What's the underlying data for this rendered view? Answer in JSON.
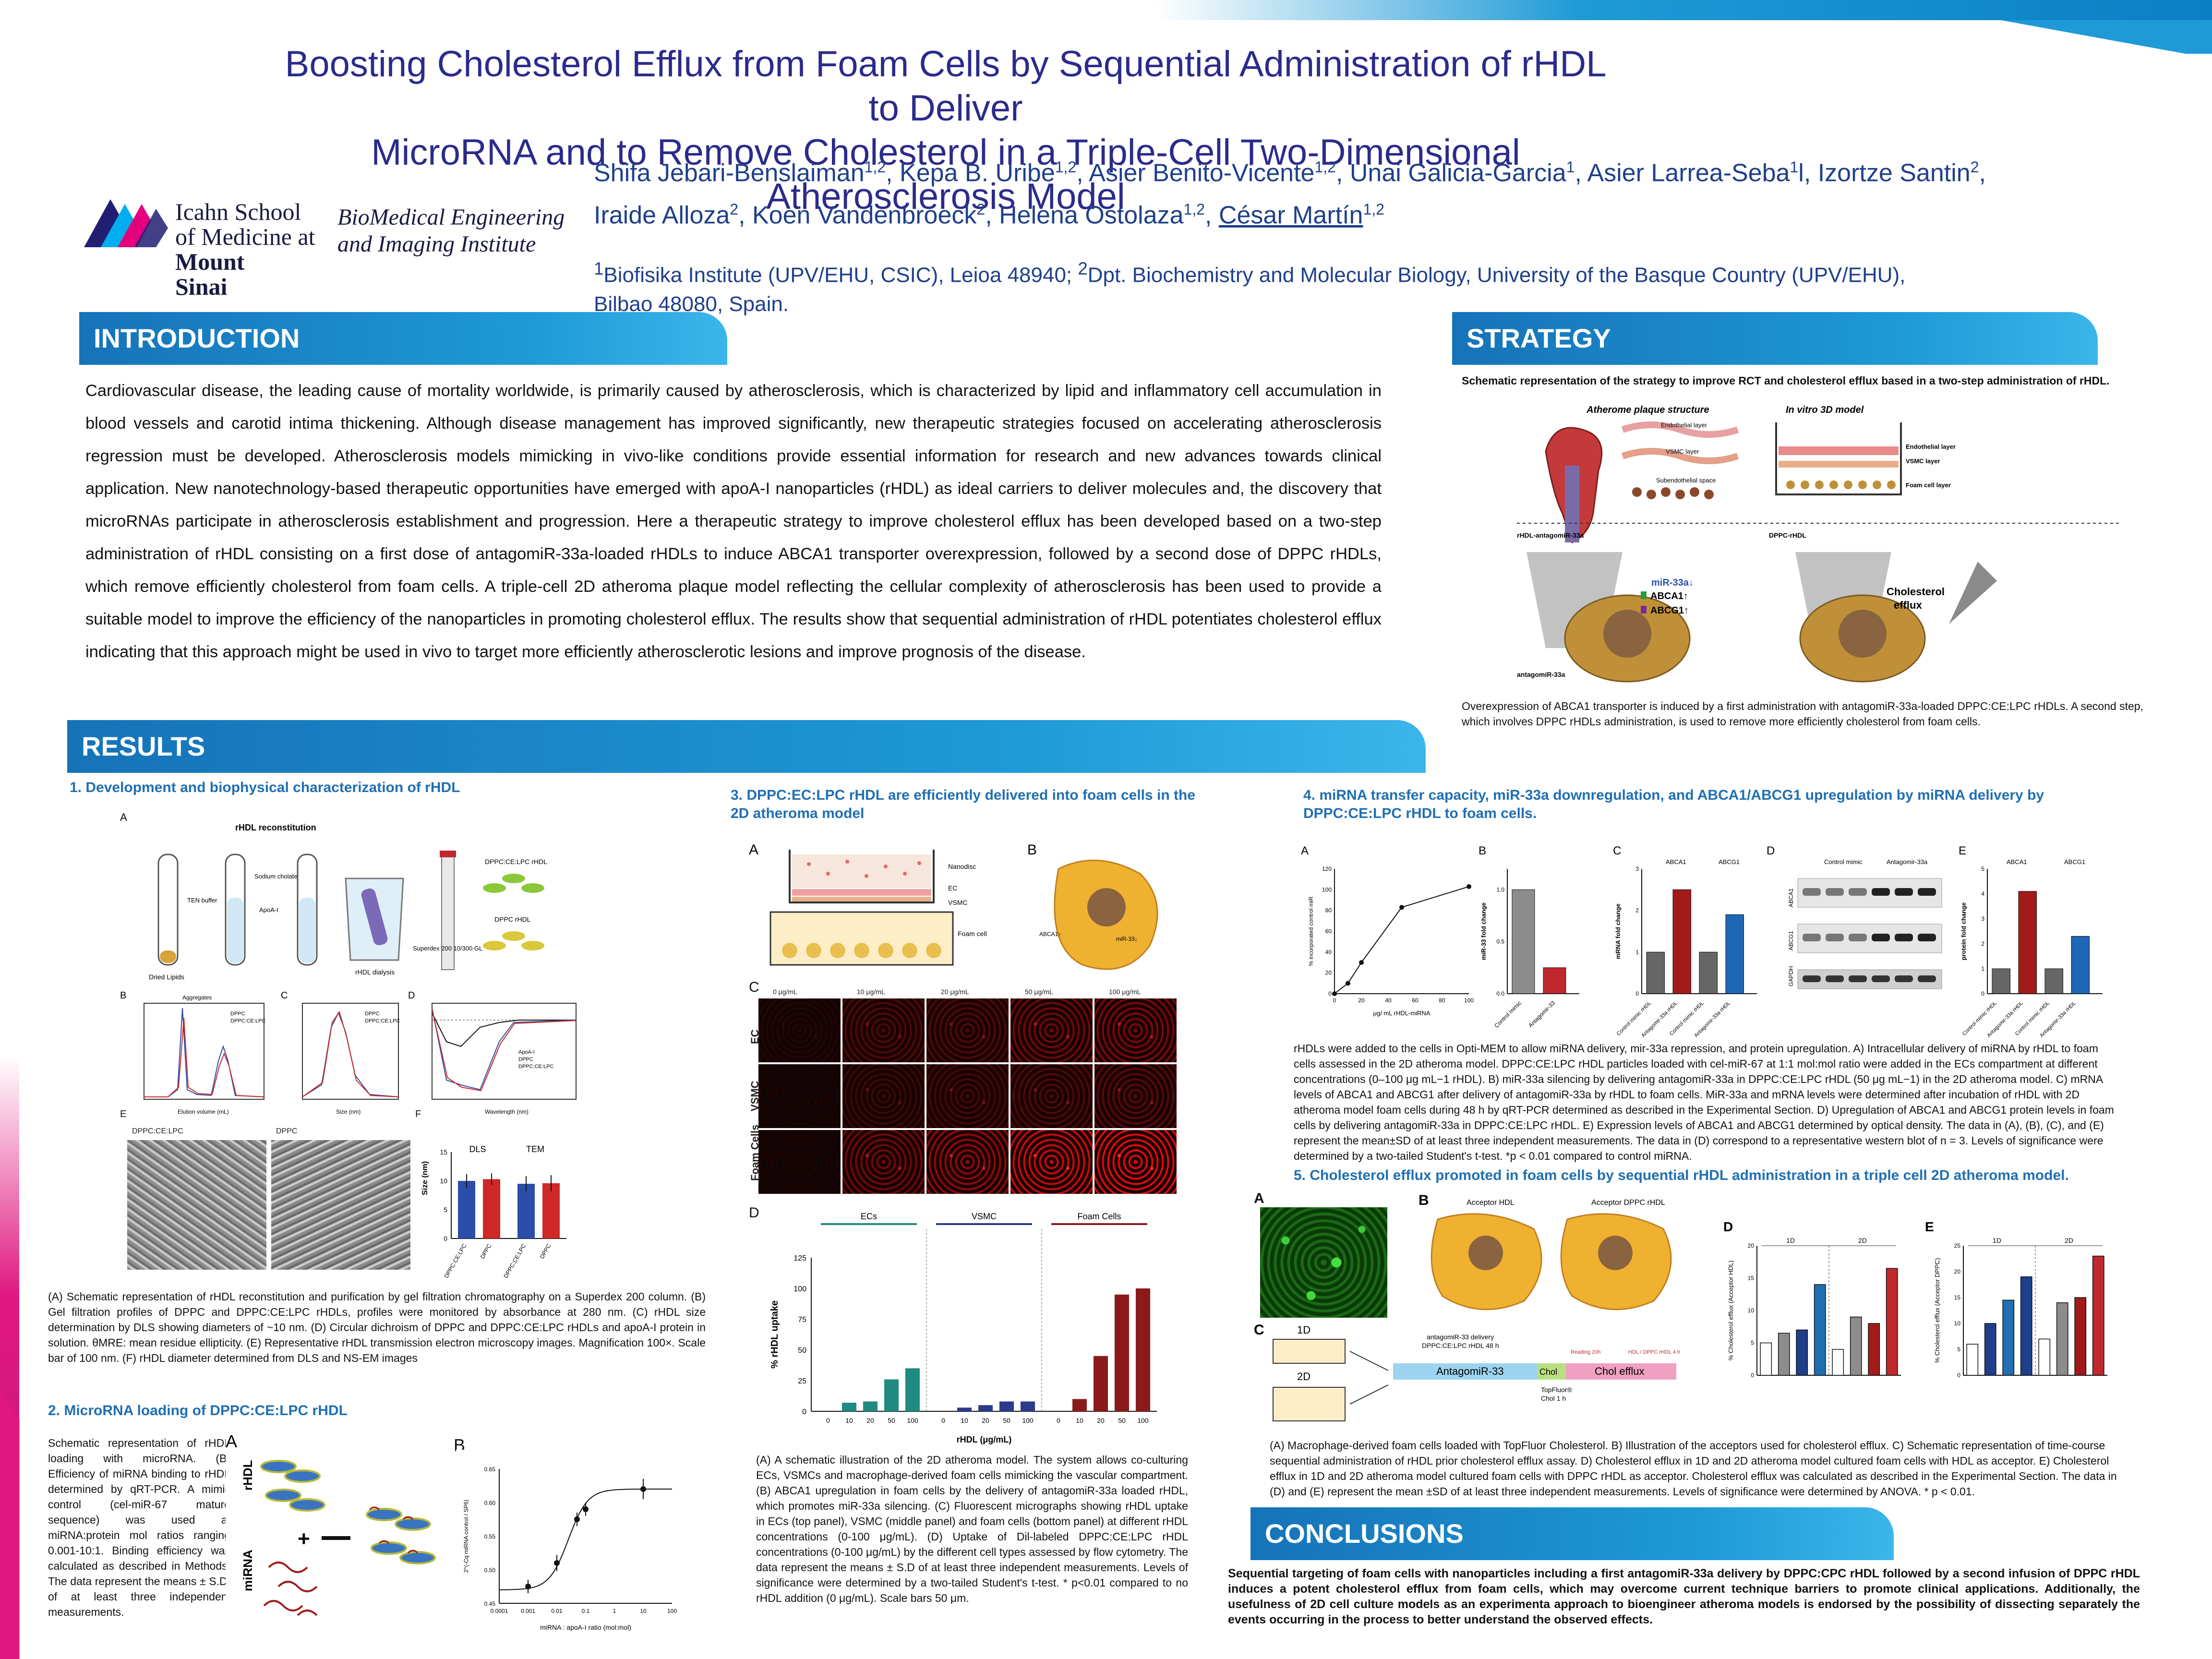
{
  "header": {
    "title_line1": "Boosting Cholesterol Efflux from Foam Cells by Sequential Administration of rHDL to Deliver",
    "title_line2": "MicroRNA and to Remove Cholesterol in a Triple-Cell Two-Dimensional Atherosclerosis Model",
    "authors": [
      {
        "name": "Shifa Jebari-Benslaiman",
        "sup": "1,2",
        "sep": ", "
      },
      {
        "name": "Kepa B. Uribe",
        "sup": "1,2",
        "sep": ", "
      },
      {
        "name": "Asier Benito-Vicente",
        "sup": "1,2",
        "sep": ", "
      },
      {
        "name": "Unai Galicia-Garcia",
        "sup": "1",
        "sep": ", "
      },
      {
        "name": "Asier Larrea-Seba",
        "sup": "1",
        "sep": "l, "
      },
      {
        "name": "Izortze Santin",
        "sup": "2",
        "sep": ", "
      },
      {
        "name": "Iraide Alloza",
        "sup": "2",
        "sep": ", "
      },
      {
        "name": "Koen Vandenbroeck",
        "sup": "2",
        "sep": ", "
      },
      {
        "name": "Helena Ostolaza",
        "sup": "1,2",
        "sep": ", "
      },
      {
        "name": "César Martín",
        "sup": "1,2",
        "sep": ""
      }
    ],
    "affil_sup1": "1",
    "affil_text1": "Biofisika Institute (UPV/EHU, CSIC), Leioa 48940; ",
    "affil_sup2": "2",
    "affil_text2": "Dpt. Biochemistry and Molecular Biology, University of the Basque Country (UPV/EHU), Bilbao 48080, Spain."
  },
  "logo": {
    "line1": "Icahn School",
    "line2": "of Medicine at",
    "line3": "Mount",
    "line4": "Sinai",
    "bmei1": "BioMedical Engineering",
    "bmei2": "and Imaging Institute"
  },
  "sections": {
    "introduction": "INTRODUCTION",
    "strategy": "STRATEGY",
    "results": "RESULTS",
    "conclusions": "CONCLUSIONS"
  },
  "introduction_text": "Cardiovascular disease, the leading cause of mortality worldwide, is primarily caused by atherosclerosis, which is characterized by lipid and inflammatory cell accumulation in blood vessels and carotid intima thickening. Although disease management has improved significantly, new therapeutic strategies focused on accelerating atherosclerosis regression must be developed. Atherosclerosis models mimicking in vivo-like conditions provide essential information for research and new advances towards clinical application. New nanotechnology-based therapeutic opportunities have emerged with apoA-I nanoparticles (rHDL) as ideal carriers to deliver molecules and, the discovery that microRNAs participate in atherosclerosis establishment and progression. Here a therapeutic strategy to improve cholesterol efflux has been developed based on a two-step administration of rHDL consisting on a first dose of antagomiR-33a-loaded rHDLs to induce ABCA1 transporter overexpression, followed by a second dose of DPPC rHDLs, which remove efficiently cholesterol from foam cells. A triple-cell 2D atheroma plaque model reflecting the cellular complexity of atherosclerosis has been used to provide a suitable model to improve the efficiency of the nanoparticles in promoting cholesterol efflux. The results show that sequential administration of rHDL potentiates cholesterol efflux indicating that this approach might be used in vivo to target more efficiently atherosclerotic lesions and improve prognosis of the disease.",
  "strategy": {
    "caption": "Schematic representation of the strategy to improve RCT and cholesterol efflux based in a two-step administration of rHDL.",
    "labels": {
      "plaque": "Atherome plaque structure",
      "model": "In vitro 3D model",
      "endo": "Endothelial layer",
      "vsmc": "VSMC layer",
      "subendo": "Subendothelial space",
      "endo2": "Endothelial layer",
      "vsmc2": "VSMC layer",
      "foam": "Foam cell layer",
      "rhdl_antago": "rHDL-antagomiR-33a",
      "dppc": "DPPC-rHDL",
      "mir": "miR-33a↓",
      "abca1": "ABCA1↑",
      "abcg1": "ABCG1↑",
      "chol": "Cholesterol",
      "efflux": "efflux",
      "antago": "antagomiR-33a"
    },
    "text": "Overexpression of ABCA1 transporter is induced by a first administration with antagomiR-33a-loaded DPPC:CE:LPC rHDLs. A second step, which involves DPPC rHDLs administration, is used to remove more efficiently cholesterol from foam cells."
  },
  "r1": {
    "heading": "1. Development and biophysical characterization of rHDL",
    "labels": {
      "A": "A",
      "B": "B",
      "C": "C",
      "D": "D",
      "E": "E",
      "F": "F",
      "reconstitution": "rHDL reconstitution",
      "dried": "Dried Lipids",
      "teb": "TEN buffer",
      "sodium": "Sodium cholate",
      "apoai": "ApoA-I",
      "dialysis": "rHDL dialysis",
      "superdex": "Superdex 200 10/300 GL",
      "dppc_lpc": "DPPC:CE:LPC rHDL",
      "dppc_rhdl": "DPPC rHDL",
      "aggregates": "Aggregates",
      "elution": "Elution volume (mL)",
      "size": "Size (nm)",
      "wavelength": "Wavelength (nm)",
      "leg_dppc": "DPPC",
      "leg_dppc_lpc": "DPPC:CE:LPC",
      "leg_apoai": "ApoA-I",
      "tem_left": "DPPC:CE:LPC",
      "tem_right": "DPPC"
    },
    "chart_F": {
      "type": "bar",
      "categories": [
        "DPPC:CE:LPC",
        "DPPC",
        "DPPC:CE:LPC",
        "DPPC"
      ],
      "groups": [
        "DLS",
        "TEM"
      ],
      "values": [
        10,
        10.3,
        9.5,
        9.6
      ],
      "errors": [
        1.2,
        1.0,
        1.3,
        1.4
      ],
      "colors": [
        "#2b4ea8",
        "#d02727",
        "#2b4ea8",
        "#d02727"
      ],
      "ylim": [
        0,
        15
      ],
      "yticks": [
        "0",
        "5",
        "10",
        "15"
      ],
      "ylabel": "Size (nm)"
    },
    "caption": "(A) Schematic representation of rHDL reconstitution and purification by gel filtration chromatography on a Superdex 200 column. (B) Gel filtration profiles of DPPC and DPPC:CE:LPC rHDLs, profiles were monitored by absorbance at 280 nm. (C) rHDL size determination by DLS showing diameters of ~10 nm. (D) Circular dichroism of DPPC and DPPC:CE:LPC rHDLs and apoA-I protein in solution. θMRE: mean residue ellipticity. (E) Representative rHDL transmission electron microscopy images. Magnification 100×. Scale bar of 100 nm. (F) rHDL diameter determined from DLS and NS-EM images"
  },
  "r2": {
    "heading": "2. MicroRNA loading of DPPC:CE:LPC rHDL",
    "text": "Schematic representation of rHDL loading with microRNA. (B) Efficiency of miRNA binding to rHDL determined by qRT-PCR. A mimic control (cel-miR-67 mature sequence) was used at miRNA:protein mol ratios ranging 0.001-10:1. Binding efficiency was calculated as described in Methods. The data represent the means ± S.D. of at least three independent measurements.",
    "labels": {
      "A": "A",
      "B": "B",
      "rhdl": "rHDL",
      "mirna": "miRNA",
      "plus": "+"
    },
    "chart_B": {
      "type": "scatter",
      "x": [
        0.001,
        0.01,
        0.05,
        0.1,
        10
      ],
      "y": [
        0.475,
        0.51,
        0.575,
        0.59,
        0.62
      ],
      "errors": [
        0.01,
        0.012,
        0.01,
        0.01,
        0.015
      ],
      "xlabel": "miRNA : apoA-I ratio (mol:mol)",
      "ylabel": "2^(-Cq miRNA control / SP6)",
      "xticks": [
        "0.0001",
        "0.001",
        "0.01",
        "0.1",
        "1",
        "10",
        "100"
      ],
      "yticks": [
        "0.45",
        "0.50",
        "0.55",
        "0.60",
        "0.65"
      ],
      "ylim": [
        0.45,
        0.65
      ]
    }
  },
  "r3": {
    "heading": "3. DPPC:EC:LPC  rHDL are efficiently delivered into foam cells in the 2D atheroma model",
    "labels": {
      "A": "A",
      "B": "B",
      "C": "C",
      "D": "D",
      "nanodisc": "Nanodisc",
      "ec": "EC",
      "vsmc": "VSMC",
      "foam": "Foam cell",
      "abca1": "ABCA1↑",
      "mir": "miR-33↓",
      "row_ec": "EC",
      "row_vsmc": "VSMC",
      "row_foam": "Foam Cells",
      "c0": "0 μg/mL",
      "c10": "10 μg/mL",
      "c20": "20 μg/mL",
      "c50": "50 μg/mL",
      "c100": "100 μg/mL",
      "g_ecs": "ECs",
      "g_vsmc": "VSMC",
      "g_foam": "Foam Cells"
    },
    "chart_D": {
      "type": "bar",
      "categories": [
        "0",
        "10",
        "20",
        "50",
        "100",
        "0",
        "10",
        "20",
        "50",
        "100",
        "0",
        "10",
        "20",
        "50",
        "100"
      ],
      "groups": [
        "ECs",
        "VSMC",
        "Foam Cells"
      ],
      "values": [
        0,
        7,
        8,
        26,
        35,
        0,
        3,
        5,
        8,
        8,
        0,
        10,
        45,
        95,
        100
      ],
      "colors": [
        "#1f8a80",
        "#1f8a80",
        "#1f8a80",
        "#1f8a80",
        "#1f8a80",
        "#2b3a8c",
        "#2b3a8c",
        "#2b3a8c",
        "#2b3a8c",
        "#2b3a8c",
        "#8b1a1a",
        "#8b1a1a",
        "#8b1a1a",
        "#8b1a1a",
        "#8b1a1a"
      ],
      "ylim": [
        0,
        125
      ],
      "yticks": [
        "0",
        "25",
        "50",
        "75",
        "100",
        "125"
      ],
      "xlabel": "rHDL (μg/mL)",
      "ylabel": "% rHDL uptake"
    },
    "caption": "(A) A schematic illustration of the 2D atheroma model. The system allows co-culturing ECs, VSMCs and macrophage-derived foam cells mimicking the vascular compartment. (B) ABCA1 upregulation in foam cells by the delivery of antagomiR-33a loaded rHDL, which promotes miR-33a silencing. (C) Fluorescent micrographs showing rHDL uptake in ECs (top panel), VSMC (middle panel) and foam cells (bottom panel) at different rHDL concentrations (0-100 μg/mL). (D) Uptake of Dil-labeled DPPC:CE:LPC rHDL concentrations (0-100 μg/mL) by the different cell types assessed by flow cytometry. The data represent the means ± S.D of at least three independent measurements. Levels of significance were determined by a two-tailed Student's t-test. * p<0.01 compared to no rHDL addition (0 μg/mL). Scale bars 50 μm."
  },
  "r4": {
    "heading": "4. miRNA transfer capacity, miR-33a downregulation, and ABCA1/ABCG1 upregulation by miRNA delivery by DPPC:CE:LPC  rHDL to foam cells.",
    "labels": {
      "A": "A",
      "B": "B",
      "C": "C",
      "D": "D",
      "E": "E",
      "abca1": "ABCA1",
      "abcg1": "ABCG1",
      "gapdh": "GAPDH",
      "ctrl_mimic": "Control mimic",
      "antago": "Antagomir-33a",
      "a_ylabel": "% incorporated control miR",
      "a_xlabel": "μg/ mL rHDL-miRNA",
      "b_ylabel": "miR-33 fold change",
      "c_ylabel": "mRNA fold change",
      "e_ylabel": "protein fold change",
      "cm": "Control mimic",
      "am": "Antagomir-33",
      "cmr": "Control mimic rHDL",
      "amr": "Antagomir-33a rHDL"
    },
    "chart_A": {
      "type": "line",
      "x": [
        0,
        10,
        20,
        50,
        100
      ],
      "y": [
        0,
        10,
        30,
        83,
        103
      ],
      "xticks": [
        "0",
        "20",
        "40",
        "60",
        "80",
        "100"
      ],
      "yticks": [
        "0",
        "20",
        "40",
        "60",
        "80",
        "100",
        "120"
      ],
      "ylim": [
        0,
        120
      ]
    },
    "chart_B": {
      "type": "bar",
      "values": [
        1.0,
        0.25
      ],
      "yticks": [
        "0.0",
        "0.5",
        "1.0"
      ],
      "ylim": [
        0,
        1.2
      ],
      "colors": [
        "#8c8c8c",
        "#c0282d"
      ]
    },
    "chart_C": {
      "type": "bar",
      "values": [
        1.0,
        2.5,
        1.0,
        1.9
      ],
      "yticks": [
        "0",
        "1",
        "2",
        "3"
      ],
      "ylim": [
        0,
        3
      ],
      "colors": [
        "#666666",
        "#a21a1a",
        "#666666",
        "#1f66b4"
      ]
    },
    "chart_E": {
      "type": "bar",
      "values": [
        1.0,
        4.1,
        1.0,
        2.3
      ],
      "yticks": [
        "0",
        "1",
        "2",
        "3",
        "4",
        "5"
      ],
      "ylim": [
        0,
        5
      ],
      "colors": [
        "#666666",
        "#a21a1a",
        "#666666",
        "#1f66b4"
      ]
    },
    "caption": "rHDLs were added to the cells in Opti-MEM to allow miRNA delivery, mir-33a repression, and protein upregulation. A) Intracellular delivery of miRNA by rHDL to foam cells assessed in the 2D atheroma model. DPPC:CE:LPC rHDL particles loaded with cel-miR-67 at 1:1 mol:mol ratio were added in the ECs compartment at different concentrations (0–100 μg mL−1 rHDL). B) miR-33a silencing by delivering antagomiR-33a in DPPC:CE:LPC rHDL (50 μg mL−1) in the 2D atheroma model. C) mRNA levels of ABCA1 and ABCG1 after delivery of antagomiR-33a by rHDL to foam cells. MiR-33a and mRNA levels were determined after incubation of rHDL with 2D atheroma model foam cells during 48 h by qRT-PCR determined as described in the Experimental Section. D) Upregulation of ABCA1 and ABCG1 protein levels in foam cells by delivering antagomiR-33a in DPPC:CE:LPC rHDL. E) Expression levels of ABCA1 and ABCG1 determined by optical density. The data in (A), (B), (C), and (E) represent the mean±SD of at least three independent measurements. The data in (D) correspond to a representative western blot of n = 3. Levels of significance were determined by a two-tailed Student's t-test. *p < 0.01 compared to control miRNA."
  },
  "r5": {
    "heading": "5. Cholesterol efflux promoted in foam cells by sequential rHDL administration in a triple cell 2D atheroma model.",
    "labels": {
      "A": "A",
      "B": "B",
      "C": "C",
      "D": "D",
      "E": "E",
      "acc_hdl": "Acceptor HDL",
      "acc_dppc": "Acceptor DPPC rHDL",
      "oneD": "1D",
      "twoD": "2D",
      "antago_note1": "antagomiR-33 delivery",
      "antago_note2": "DPPC:CE:LPC rHDL 48 h",
      "antagomir33": "AntagomiR-33",
      "chol": "Chol",
      "readout": "Reading 20h",
      "chol_efflux": "Chol efflux",
      "topfluor1": "TopFluor®",
      "topfluor2": "Chol 1 h",
      "hdl_dppc": "HDL / DPPC rHDL 4 h",
      "d_ylabel": "% Cholesterol efflux (Acceptor HDL)",
      "e_ylabel": "% Cholesterol efflux (Acceptor DPPC)"
    },
    "chart_D": {
      "type": "bar",
      "values": [
        5,
        6.5,
        7,
        14,
        4,
        9,
        8,
        16.5
      ],
      "ylim": [
        0,
        20
      ],
      "yticks": [
        "0",
        "5",
        "10",
        "15",
        "20"
      ],
      "colors": [
        "#ffffff",
        "#8c8c8c",
        "#1f3f8a",
        "#1f6fb2",
        "#ffffff",
        "#8c8c8c",
        "#a21a1a",
        "#c0282d"
      ]
    },
    "chart_E": {
      "type": "bar",
      "values": [
        6,
        10,
        14.5,
        19,
        7,
        14,
        15,
        23
      ],
      "ylim": [
        0,
        25
      ],
      "yticks": [
        "0",
        "5",
        "10",
        "15",
        "20",
        "25"
      ],
      "colors": [
        "#ffffff",
        "#1f3f8a",
        "#1f6fb2",
        "#1f3f8a",
        "#ffffff",
        "#8c8c8c",
        "#a21a1a",
        "#c0282d"
      ]
    },
    "caption": "(A) Macrophage-derived foam cells loaded with TopFluor Cholesterol. B) Illustration of the acceptors used for cholesterol efflux. C) Schematic representation of time-course sequential administration of rHDL prior cholesterol efflux assay. D) Cholesterol efflux in 1D and 2D atheroma model cultured foam cells with HDL as acceptor. E) Cholesterol efflux in 1D and 2D atheroma model cultured foam cells with DPPC rHDL as acceptor. Cholesterol efflux was calculated as described in the Experimental Section. The data in (D) and (E) represent the mean ±SD of at least three independent measurements. Levels of significance were determined by ANOVA.  * p < 0.01."
  },
  "conclusions_text": "Sequential targeting of foam cells with nanoparticles including a first antagomiR-33a delivery by DPPC:CPC rHDL followed by a second infusion of DPPC rHDL induces a potent cholesterol efflux from foam cells, which may overcome current technique barriers to promote clinical applications. Additionally, the usefulness of 2D cell culture models as an experimenta  approach to bioengineer atheroma models is endorsed by the possibility of dissecting separately the events occurring in the process to better understand the observed effects."
}
